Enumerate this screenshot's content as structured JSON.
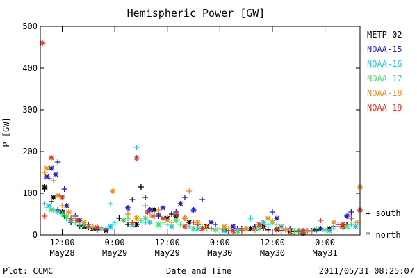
{
  "chart_data": {
    "type": "scatter",
    "title": "Hemispheric Power [GW]",
    "xlabel": "Date and Time",
    "ylabel": "P [GW]",
    "xlim": [
      "2011-05-28T07:00",
      "2011-05-31T08:00"
    ],
    "ylim": [
      0,
      500
    ],
    "y_ticks": [
      "0",
      "100",
      "200",
      "300",
      "400",
      "500"
    ],
    "x_ticks": [
      {
        "time": "2011-05-28T12:00",
        "label1": "12:00",
        "label2": "May28"
      },
      {
        "time": "2011-05-29T00:00",
        "label1": "0:00",
        "label2": "May29"
      },
      {
        "time": "2011-05-29T12:00",
        "label1": "12:00",
        "label2": "May29"
      },
      {
        "time": "2011-05-30T00:00",
        "label1": "0:00",
        "label2": "May30"
      },
      {
        "time": "2011-05-30T12:00",
        "label1": "12:00",
        "label2": "May30"
      },
      {
        "time": "2011-05-31T00:00",
        "label1": "0:00",
        "label2": "May31"
      }
    ],
    "marker_legend": [
      {
        "symbol": "+",
        "label": "south"
      },
      {
        "symbol": "*",
        "label": "north"
      }
    ],
    "series": [
      {
        "name": "METP-02",
        "color": "#000000",
        "south": [
          [
            "2011-05-28T08:00",
            110
          ],
          [
            "2011-05-28T09:30",
            80
          ],
          [
            "2011-05-28T11:00",
            60
          ],
          [
            "2011-05-28T12:30",
            45
          ],
          [
            "2011-05-28T14:00",
            30
          ],
          [
            "2011-05-28T16:00",
            22
          ],
          [
            "2011-05-28T18:00",
            18
          ],
          [
            "2011-05-28T20:00",
            12
          ],
          [
            "2011-05-28T23:00",
            20
          ],
          [
            "2011-05-29T01:00",
            40
          ],
          [
            "2011-05-29T03:00",
            25
          ],
          [
            "2011-05-29T06:00",
            115
          ],
          [
            "2011-05-29T08:00",
            60
          ],
          [
            "2011-05-29T10:00",
            45
          ],
          [
            "2011-05-29T13:00",
            50
          ],
          [
            "2011-05-29T16:00",
            40
          ],
          [
            "2011-05-29T19:00",
            25
          ],
          [
            "2011-05-29T22:00",
            15
          ],
          [
            "2011-05-30T02:00",
            10
          ],
          [
            "2011-05-30T05:00",
            15
          ],
          [
            "2011-05-30T08:00",
            20
          ],
          [
            "2011-05-30T11:00",
            12
          ],
          [
            "2011-05-30T14:00",
            10
          ],
          [
            "2011-05-30T17:00",
            8
          ],
          [
            "2011-05-30T20:00",
            10
          ],
          [
            "2011-05-30T23:00",
            15
          ],
          [
            "2011-05-31T02:00",
            20
          ],
          [
            "2011-05-31T05:00",
            25
          ]
        ],
        "north": [
          [
            "2011-05-28T08:00",
            115
          ],
          [
            "2011-05-28T10:00",
            90
          ],
          [
            "2011-05-28T12:00",
            55
          ],
          [
            "2011-05-28T14:00",
            35
          ],
          [
            "2011-05-28T17:00",
            20
          ],
          [
            "2011-05-28T19:00",
            15
          ],
          [
            "2011-05-28T22:00",
            10
          ],
          [
            "2011-05-29T02:00",
            35
          ],
          [
            "2011-05-29T05:00",
            25
          ],
          [
            "2011-05-29T09:00",
            60
          ],
          [
            "2011-05-29T12:00",
            40
          ],
          [
            "2011-05-29T14:00",
            45
          ],
          [
            "2011-05-29T17:00",
            30
          ],
          [
            "2011-05-29T21:00",
            20
          ],
          [
            "2011-05-30T01:00",
            12
          ],
          [
            "2011-05-30T04:00",
            10
          ],
          [
            "2011-05-30T07:00",
            15
          ],
          [
            "2011-05-30T10:00",
            20
          ],
          [
            "2011-05-30T13:00",
            12
          ],
          [
            "2011-05-30T16:00",
            8
          ],
          [
            "2011-05-30T19:00",
            5
          ],
          [
            "2011-05-30T22:00",
            12
          ],
          [
            "2011-05-31T01:00",
            15
          ],
          [
            "2011-05-31T04:00",
            20
          ]
        ]
      },
      {
        "name": "NOAA-15",
        "color": "#1a1ad6",
        "south": [
          [
            "2011-05-28T09:00",
            135
          ],
          [
            "2011-05-28T11:00",
            175
          ],
          [
            "2011-05-28T12:30",
            110
          ],
          [
            "2011-05-28T15:00",
            45
          ],
          [
            "2011-05-28T18:00",
            25
          ],
          [
            "2011-05-28T22:00",
            15
          ],
          [
            "2011-05-29T04:00",
            85
          ],
          [
            "2011-05-29T07:00",
            90
          ],
          [
            "2011-05-29T10:00",
            50
          ],
          [
            "2011-05-29T14:00",
            55
          ],
          [
            "2011-05-29T16:00",
            90
          ],
          [
            "2011-05-29T20:00",
            85
          ],
          [
            "2011-05-29T23:00",
            25
          ],
          [
            "2011-05-30T04:00",
            15
          ],
          [
            "2011-05-30T09:00",
            20
          ],
          [
            "2011-05-30T12:00",
            55
          ],
          [
            "2011-05-30T16:00",
            15
          ],
          [
            "2011-05-30T21:00",
            10
          ],
          [
            "2011-05-31T03:00",
            25
          ],
          [
            "2011-05-31T06:00",
            55
          ]
        ],
        "north": [
          [
            "2011-05-28T08:30",
            140
          ],
          [
            "2011-05-28T09:30",
            160
          ],
          [
            "2011-05-28T10:30",
            145
          ],
          [
            "2011-05-28T13:00",
            70
          ],
          [
            "2011-05-28T16:00",
            35
          ],
          [
            "2011-05-28T20:00",
            15
          ],
          [
            "2011-05-29T03:00",
            65
          ],
          [
            "2011-05-29T08:00",
            60
          ],
          [
            "2011-05-29T11:00",
            65
          ],
          [
            "2011-05-29T15:00",
            75
          ],
          [
            "2011-05-29T18:00",
            60
          ],
          [
            "2011-05-29T22:00",
            30
          ],
          [
            "2011-05-30T03:00",
            20
          ],
          [
            "2011-05-30T08:00",
            15
          ],
          [
            "2011-05-30T13:00",
            40
          ],
          [
            "2011-05-30T18:00",
            10
          ],
          [
            "2011-05-30T23:00",
            15
          ],
          [
            "2011-05-31T05:00",
            45
          ]
        ]
      },
      {
        "name": "NOAA-16",
        "color": "#18c8e8",
        "south": [
          [
            "2011-05-28T08:00",
            75
          ],
          [
            "2011-05-28T10:00",
            60
          ],
          [
            "2011-05-28T13:00",
            40
          ],
          [
            "2011-05-28T16:00",
            25
          ],
          [
            "2011-05-28T20:00",
            15
          ],
          [
            "2011-05-29T00:00",
            30
          ],
          [
            "2011-05-29T05:00",
            210
          ],
          [
            "2011-05-29T07:00",
            30
          ],
          [
            "2011-05-29T12:00",
            25
          ],
          [
            "2011-05-29T17:00",
            20
          ],
          [
            "2011-05-29T21:00",
            15
          ],
          [
            "2011-05-30T03:00",
            10
          ],
          [
            "2011-05-30T07:00",
            40
          ],
          [
            "2011-05-30T11:00",
            25
          ],
          [
            "2011-05-30T15:00",
            15
          ],
          [
            "2011-05-30T20:00",
            10
          ],
          [
            "2011-05-31T02:00",
            15
          ],
          [
            "2011-05-31T06:00",
            25
          ]
        ],
        "north": [
          [
            "2011-05-28T09:00",
            70
          ],
          [
            "2011-05-28T11:00",
            55
          ],
          [
            "2011-05-28T14:00",
            35
          ],
          [
            "2011-05-28T18:00",
            20
          ],
          [
            "2011-05-28T23:00",
            20
          ],
          [
            "2011-05-29T04:00",
            25
          ],
          [
            "2011-05-29T08:00",
            30
          ],
          [
            "2011-05-29T13:00",
            20
          ],
          [
            "2011-05-29T19:00",
            15
          ],
          [
            "2011-05-30T01:00",
            10
          ],
          [
            "2011-05-30T06:00",
            15
          ],
          [
            "2011-05-30T10:00",
            30
          ],
          [
            "2011-05-30T14:00",
            20
          ],
          [
            "2011-05-30T19:00",
            8
          ],
          [
            "2011-05-31T01:00",
            10
          ],
          [
            "2011-05-31T07:00",
            20
          ]
        ]
      },
      {
        "name": "NOAA-17",
        "color": "#3ee26c",
        "south": [
          [
            "2011-05-28T08:30",
            65
          ],
          [
            "2011-05-28T12:00",
            50
          ],
          [
            "2011-05-28T15:00",
            30
          ],
          [
            "2011-05-28T19:00",
            18
          ],
          [
            "2011-05-28T23:00",
            75
          ],
          [
            "2011-05-29T03:00",
            40
          ],
          [
            "2011-05-29T06:00",
            35
          ],
          [
            "2011-05-29T11:00",
            30
          ],
          [
            "2011-05-29T15:00",
            25
          ],
          [
            "2011-05-29T20:00",
            20
          ],
          [
            "2011-05-30T00:00",
            15
          ],
          [
            "2011-05-30T05:00",
            12
          ],
          [
            "2011-05-30T09:00",
            20
          ],
          [
            "2011-05-30T13:00",
            25
          ],
          [
            "2011-05-30T17:00",
            10
          ],
          [
            "2011-05-30T22:00",
            15
          ],
          [
            "2011-05-31T04:00",
            18
          ],
          [
            "2011-05-31T07:00",
            30
          ]
        ],
        "north": [
          [
            "2011-05-28T09:30",
            60
          ],
          [
            "2011-05-28T13:00",
            45
          ],
          [
            "2011-05-28T17:00",
            25
          ],
          [
            "2011-05-28T21:00",
            15
          ],
          [
            "2011-05-29T02:00",
            35
          ],
          [
            "2011-05-29T07:00",
            40
          ],
          [
            "2011-05-29T10:00",
            25
          ],
          [
            "2011-05-29T14:00",
            35
          ],
          [
            "2011-05-29T18:00",
            15
          ],
          [
            "2011-05-29T23:00",
            12
          ],
          [
            "2011-05-30T04:00",
            10
          ],
          [
            "2011-05-30T09:00",
            15
          ],
          [
            "2011-05-30T12:00",
            30
          ],
          [
            "2011-05-30T18:00",
            10
          ],
          [
            "2011-05-31T00:00",
            12
          ],
          [
            "2011-05-31T05:00",
            20
          ]
        ]
      },
      {
        "name": "NOAA-18",
        "color": "#f08c14",
        "south": [
          [
            "2011-05-28T08:00",
            150
          ],
          [
            "2011-05-28T10:00",
            130
          ],
          [
            "2011-05-28T12:00",
            70
          ],
          [
            "2011-05-28T15:00",
            40
          ],
          [
            "2011-05-28T19:00",
            20
          ],
          [
            "2011-05-29T03:00",
            50
          ],
          [
            "2011-05-29T07:00",
            70
          ],
          [
            "2011-05-29T10:00",
            60
          ],
          [
            "2011-05-29T13:00",
            30
          ],
          [
            "2011-05-29T17:00",
            105
          ],
          [
            "2011-05-29T21:00",
            20
          ],
          [
            "2011-05-30T02:00",
            15
          ],
          [
            "2011-05-30T08:00",
            12
          ],
          [
            "2011-05-30T12:00",
            35
          ],
          [
            "2011-05-30T16:00",
            10
          ],
          [
            "2011-05-30T21:00",
            8
          ],
          [
            "2011-05-31T03:00",
            20
          ],
          [
            "2011-05-31T07:30",
            30
          ]
        ],
        "north": [
          [
            "2011-05-28T08:30",
            160
          ],
          [
            "2011-05-28T11:00",
            95
          ],
          [
            "2011-05-28T13:30",
            55
          ],
          [
            "2011-05-28T17:00",
            30
          ],
          [
            "2011-05-28T23:30",
            105
          ],
          [
            "2011-05-29T05:00",
            40
          ],
          [
            "2011-05-29T08:30",
            45
          ],
          [
            "2011-05-29T12:00",
            35
          ],
          [
            "2011-05-29T16:00",
            40
          ],
          [
            "2011-05-29T19:00",
            30
          ],
          [
            "2011-05-30T01:00",
            20
          ],
          [
            "2011-05-30T06:00",
            15
          ],
          [
            "2011-05-30T11:00",
            40
          ],
          [
            "2011-05-30T15:00",
            12
          ],
          [
            "2011-05-30T20:00",
            10
          ],
          [
            "2011-05-31T02:00",
            30
          ],
          [
            "2011-05-31T08:00",
            115
          ]
        ]
      },
      {
        "name": "NOAA-19",
        "color": "#e8321e",
        "south": [
          [
            "2011-05-28T08:00",
            45
          ],
          [
            "2011-05-28T11:30",
            95
          ],
          [
            "2011-05-28T14:00",
            40
          ],
          [
            "2011-05-28T18:00",
            20
          ],
          [
            "2011-05-28T22:00",
            12
          ],
          [
            "2011-05-29T04:00",
            30
          ],
          [
            "2011-05-29T09:00",
            45
          ],
          [
            "2011-05-29T14:00",
            50
          ],
          [
            "2011-05-29T18:00",
            30
          ],
          [
            "2011-05-29T22:00",
            15
          ],
          [
            "2011-05-30T05:00",
            10
          ],
          [
            "2011-05-30T10:00",
            15
          ],
          [
            "2011-05-30T14:00",
            20
          ],
          [
            "2011-05-30T18:00",
            8
          ],
          [
            "2011-05-30T23:00",
            35
          ],
          [
            "2011-05-31T06:00",
            40
          ]
        ],
        "north": [
          [
            "2011-05-28T07:30",
            460
          ],
          [
            "2011-05-28T09:30",
            185
          ],
          [
            "2011-05-28T12:00",
            90
          ],
          [
            "2011-05-28T15:30",
            35
          ],
          [
            "2011-05-28T20:00",
            18
          ],
          [
            "2011-05-29T05:00",
            185
          ],
          [
            "2011-05-29T07:30",
            55
          ],
          [
            "2011-05-29T11:00",
            40
          ],
          [
            "2011-05-29T16:00",
            20
          ],
          [
            "2011-05-29T20:00",
            15
          ],
          [
            "2011-05-30T03:00",
            10
          ],
          [
            "2011-05-30T09:00",
            25
          ],
          [
            "2011-05-30T13:00",
            15
          ],
          [
            "2011-05-30T19:00",
            10
          ],
          [
            "2011-05-31T04:00",
            25
          ],
          [
            "2011-05-31T08:00",
            60
          ]
        ]
      }
    ],
    "footer_left": "Plot: CCMC",
    "footer_right": "2011/05/31 08:25:07"
  }
}
